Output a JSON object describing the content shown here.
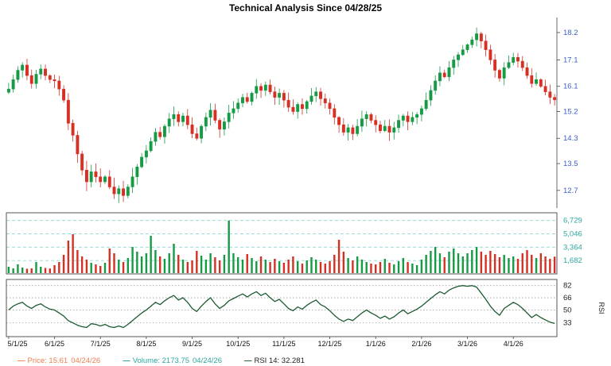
{
  "title": "Technical Analysis Since 04/28/25",
  "footer": {
    "price": {
      "dash": "—",
      "label": "Price: 15.61",
      "date": "04/24/26"
    },
    "volume": {
      "dash": "—",
      "label": "Volume: 2173.75",
      "date": "04/24/26"
    },
    "rsi": {
      "dash": "—",
      "label": "RSI 14: 32.281"
    }
  },
  "colors": {
    "up": "#169b45",
    "down": "#d63024",
    "price_axis": "#3a5fc8",
    "volume_axis": "#2aa79f",
    "volume_grid": "#8fd8d2",
    "rsi_line": "#1c5b31",
    "rsi_axis": "#222222",
    "grid_dotted": "#9a9a9a",
    "frame": "#444444",
    "axis_text": "#111111",
    "price_legend": "#ef7f4e",
    "volume_legend": "#2aa79f",
    "rsi_legend_text": "#222222"
  },
  "chart_data": [
    {
      "type": "candlestick",
      "name": "price",
      "title": "Technical Analysis Since 04/28/25",
      "y_scale": "log",
      "y_ticks": [
        18.2,
        17.1,
        16.1,
        15.2,
        14.3,
        13.5,
        12.7
      ],
      "x_tick_labels": [
        "5/1/25",
        "6/1/25",
        "7/1/25",
        "8/1/25",
        "9/1/25",
        "10/1/25",
        "11/1/25",
        "12/1/25",
        "1/1/26",
        "2/1/26",
        "3/1/26",
        "4/1/26"
      ],
      "points_per_month": 10,
      "last_close": 15.61,
      "last_date": "04/24/26",
      "closes": [
        16.0,
        16.35,
        16.7,
        16.9,
        16.5,
        16.2,
        16.55,
        16.75,
        16.5,
        16.35,
        16.3,
        16.0,
        15.6,
        14.8,
        14.4,
        13.8,
        13.3,
        12.95,
        13.25,
        13.1,
        12.95,
        13.1,
        12.8,
        12.6,
        12.75,
        12.55,
        12.8,
        13.1,
        13.4,
        13.7,
        13.9,
        14.2,
        14.5,
        14.35,
        14.7,
        14.95,
        15.1,
        14.85,
        15.05,
        14.75,
        14.45,
        14.3,
        14.7,
        15.0,
        15.25,
        14.9,
        14.6,
        14.85,
        15.15,
        15.3,
        15.5,
        15.7,
        15.55,
        15.85,
        16.1,
        15.95,
        16.15,
        15.9,
        15.7,
        15.85,
        15.6,
        15.35,
        15.2,
        15.45,
        15.3,
        15.55,
        15.75,
        15.9,
        15.65,
        15.5,
        15.3,
        15.0,
        14.75,
        14.5,
        14.65,
        14.45,
        14.7,
        14.95,
        15.1,
        14.9,
        14.75,
        14.55,
        14.7,
        14.5,
        14.65,
        14.9,
        15.05,
        14.85,
        15.0,
        15.1,
        15.3,
        15.6,
        15.95,
        16.3,
        16.6,
        16.45,
        16.8,
        17.1,
        17.3,
        17.5,
        17.7,
        17.9,
        18.15,
        17.85,
        17.5,
        17.1,
        16.7,
        16.4,
        16.8,
        17.0,
        17.2,
        17.05,
        16.8,
        16.5,
        16.2,
        16.35,
        16.1,
        15.9,
        15.7,
        15.61
      ]
    },
    {
      "type": "bar",
      "name": "volume",
      "y_ticks": [
        6729,
        5046,
        3364,
        1682
      ],
      "last_value": 2173.75,
      "values": [
        900,
        700,
        1200,
        800,
        650,
        700,
        1500,
        900,
        750,
        680,
        1100,
        1500,
        2400,
        4200,
        5000,
        3000,
        2200,
        1800,
        1400,
        1200,
        1000,
        1400,
        3200,
        2600,
        1800,
        1500,
        2000,
        3400,
        2800,
        2200,
        2600,
        4800,
        3000,
        2200,
        1900,
        2600,
        3800,
        2400,
        1800,
        1500,
        1700,
        2900,
        2300,
        1800,
        2600,
        2100,
        1700,
        2400,
        6729,
        2600,
        2100,
        1800,
        2500,
        2000,
        1600,
        2200,
        1800,
        1500,
        1900,
        1600,
        1400,
        1800,
        2200,
        1600,
        1300,
        1700,
        2100,
        1800,
        1500,
        1300,
        1600,
        2400,
        4300,
        2800,
        2000,
        1700,
        2200,
        1800,
        1500,
        1300,
        1200,
        1500,
        1900,
        1400,
        1200,
        1600,
        2000,
        1500,
        1300,
        1100,
        1800,
        2400,
        2900,
        3400,
        2600,
        2100,
        2800,
        3200,
        2600,
        2200,
        2600,
        3000,
        3400,
        2800,
        2400,
        2900,
        2500,
        2100,
        2400,
        2000,
        2200,
        1900,
        2600,
        3000,
        2400,
        2000,
        2600,
        2200,
        1900,
        2174
      ]
    },
    {
      "type": "line",
      "name": "rsi",
      "axis_label": "RSI",
      "y_ticks": [
        82,
        66,
        50,
        33
      ],
      "last_value": 32.281,
      "values": [
        50,
        55,
        58,
        60,
        55,
        52,
        56,
        58,
        54,
        51,
        50,
        46,
        42,
        36,
        33,
        30,
        28,
        27,
        32,
        31,
        29,
        31,
        28,
        27,
        29,
        27,
        31,
        36,
        41,
        46,
        50,
        55,
        60,
        57,
        62,
        66,
        69,
        63,
        66,
        60,
        52,
        48,
        55,
        61,
        66,
        58,
        52,
        56,
        62,
        65,
        68,
        71,
        67,
        71,
        74,
        69,
        72,
        66,
        61,
        64,
        58,
        52,
        49,
        54,
        51,
        56,
        60,
        63,
        57,
        54,
        49,
        43,
        38,
        35,
        38,
        36,
        41,
        46,
        50,
        46,
        43,
        39,
        42,
        38,
        41,
        46,
        50,
        45,
        48,
        51,
        55,
        60,
        65,
        70,
        74,
        71,
        76,
        79,
        81,
        82,
        81,
        82,
        80,
        72,
        64,
        55,
        48,
        43,
        52,
        56,
        60,
        57,
        52,
        46,
        40,
        44,
        40,
        37,
        34,
        32.281
      ]
    }
  ]
}
